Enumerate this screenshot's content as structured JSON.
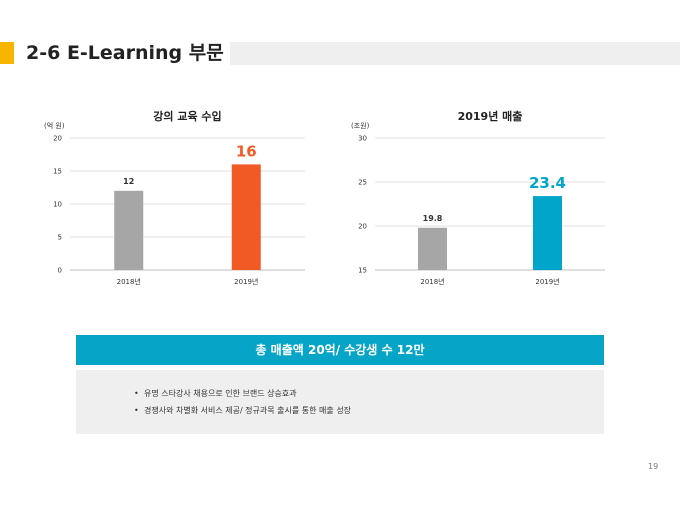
{
  "header": {
    "title": "2-6 E-Learning 부문"
  },
  "chart_data": [
    {
      "type": "bar",
      "title": "강의 교육 수입",
      "unit_label": "(억 원)",
      "categories": [
        "2018년",
        "2019년"
      ],
      "values": [
        12,
        16
      ],
      "value_labels": [
        "12",
        "16"
      ],
      "ylim": [
        0,
        20
      ],
      "yticks": [
        0,
        5,
        10,
        15,
        20
      ],
      "grid": true,
      "colors": [
        "#a6a6a6",
        "#f15a24"
      ],
      "highlight_label_color": "#f15a24"
    },
    {
      "type": "bar",
      "title": "2019년 매출",
      "unit_label": "(조원)",
      "categories": [
        "2018년",
        "2019년"
      ],
      "values": [
        19.8,
        23.4
      ],
      "value_labels": [
        "19.8",
        "23.4"
      ],
      "ylim": [
        15,
        30
      ],
      "yticks": [
        15,
        20,
        25,
        30
      ],
      "grid": true,
      "colors": [
        "#a6a6a6",
        "#00a5c9"
      ],
      "highlight_label_color": "#00a5c9"
    }
  ],
  "summary": {
    "banner": "총 매출액 20억/ 수강생 수 12만",
    "bullet_marker": "•",
    "bullets": [
      "유명 스타강사 채용으로 인한 브랜드 상승효과",
      "경쟁사와 차별화 서비스 제공/ 정규과목 출시를 통한 매출 성장"
    ]
  },
  "footer": {
    "page_number": "19"
  }
}
